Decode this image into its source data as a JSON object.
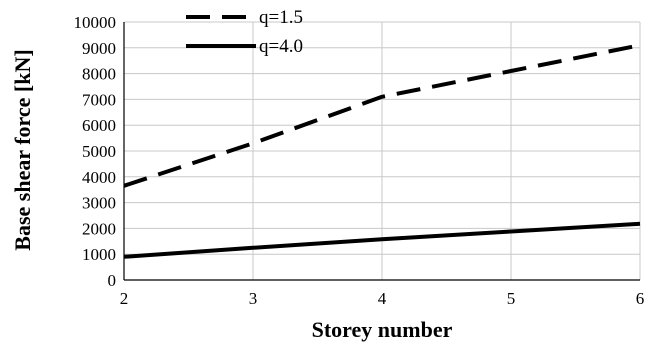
{
  "chart_data": {
    "type": "line",
    "xlabel": "Storey number",
    "ylabel": "Base shear force [kN]",
    "xlim": [
      2,
      6
    ],
    "ylim": [
      0,
      10000
    ],
    "x_ticks": [
      2,
      3,
      4,
      5,
      6
    ],
    "y_ticks": [
      0,
      1000,
      2000,
      3000,
      4000,
      5000,
      6000,
      7000,
      8000,
      9000,
      10000
    ],
    "grid": true,
    "legend_position": "top-left",
    "series": [
      {
        "name": "q=1.5",
        "style": "dashed",
        "color": "#000000",
        "x": [
          2,
          3,
          4,
          5,
          6
        ],
        "values": [
          3650,
          5300,
          7100,
          8100,
          9100
        ]
      },
      {
        "name": "q=4.0",
        "style": "solid",
        "color": "#000000",
        "x": [
          2,
          3,
          4,
          5,
          6
        ],
        "values": [
          900,
          1250,
          1580,
          1880,
          2180
        ]
      }
    ]
  }
}
